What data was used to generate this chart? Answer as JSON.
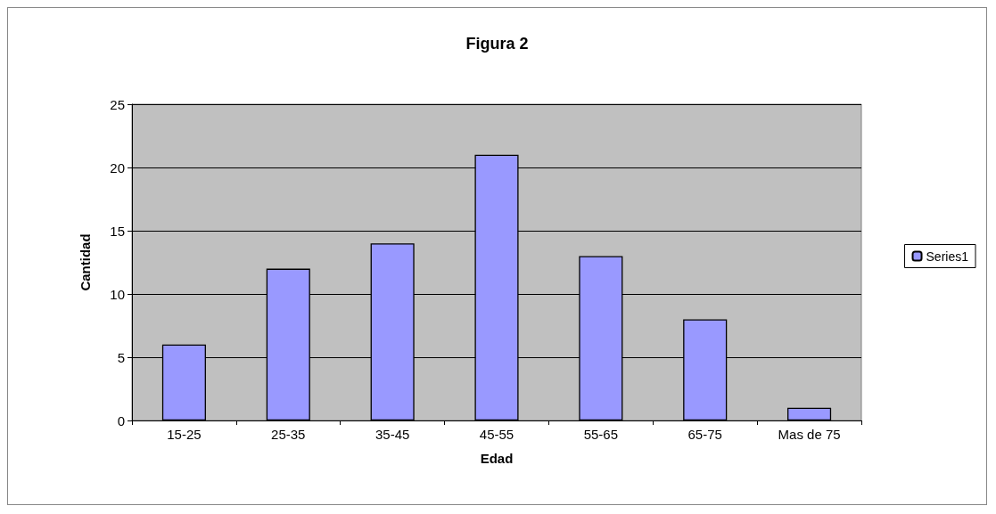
{
  "chart_data": {
    "type": "bar",
    "title": "Figura 2",
    "xlabel": "Edad",
    "ylabel": "Cantidad",
    "categories": [
      "15-25",
      "25-35",
      "35-45",
      "45-55",
      "55-65",
      "65-75",
      "Mas de 75"
    ],
    "series": [
      {
        "name": "Series1",
        "color": "#9999ff",
        "values": [
          6,
          12,
          14,
          21,
          13,
          8,
          1
        ]
      }
    ],
    "ylim": [
      0,
      25
    ],
    "yticks": [
      0,
      5,
      10,
      15,
      20,
      25
    ],
    "grid": "y",
    "legend": "right"
  }
}
